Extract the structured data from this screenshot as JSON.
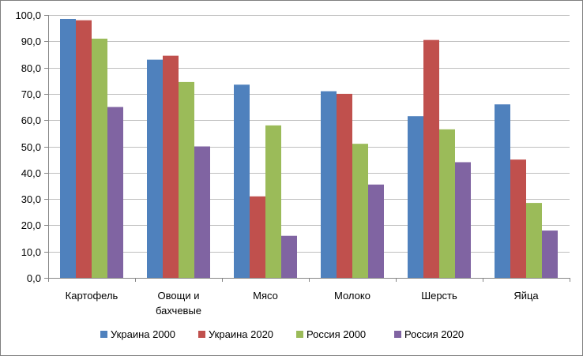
{
  "chart_data": {
    "type": "bar",
    "title": "",
    "xlabel": "",
    "ylabel": "",
    "ylim": [
      0,
      100
    ],
    "yticks": [
      "0,0",
      "10,0",
      "20,0",
      "30,0",
      "40,0",
      "50,0",
      "60,0",
      "70,0",
      "80,0",
      "90,0",
      "100,0"
    ],
    "ytick_values": [
      0,
      10,
      20,
      30,
      40,
      50,
      60,
      70,
      80,
      90,
      100
    ],
    "grid": true,
    "legend_position": "bottom",
    "categories": [
      [
        "Картофель"
      ],
      [
        "Овощи и",
        "бахчевые"
      ],
      [
        "Мясо"
      ],
      [
        "Молоко"
      ],
      [
        "Шерсть"
      ],
      [
        "Яйца"
      ]
    ],
    "series": [
      {
        "name": "Украина 2000",
        "color": "#4f81bd",
        "values": [
          98.5,
          83.0,
          73.5,
          71.0,
          61.5,
          66.0
        ]
      },
      {
        "name": "Украина 2020",
        "color": "#c0504d",
        "values": [
          98.0,
          84.5,
          31.0,
          70.0,
          90.5,
          45.0
        ]
      },
      {
        "name": "Россия 2000",
        "color": "#9bbb59",
        "values": [
          91.0,
          74.5,
          58.0,
          51.0,
          56.5,
          28.5
        ]
      },
      {
        "name": "Россия 2020",
        "color": "#8064a2",
        "values": [
          65.0,
          50.0,
          16.0,
          35.5,
          44.0,
          18.0
        ]
      }
    ]
  }
}
